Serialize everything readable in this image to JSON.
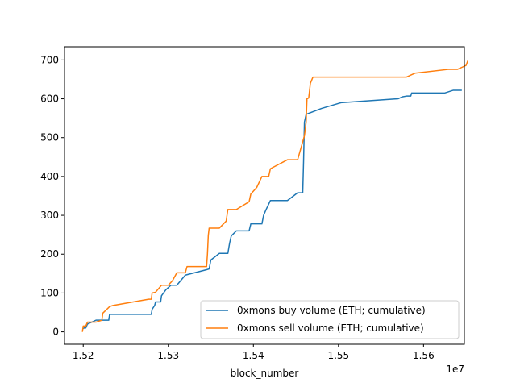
{
  "chart_data": {
    "type": "line",
    "title": "",
    "xlabel": "block_number",
    "ylabel": "",
    "x_offset_label": "1e7",
    "xlim": [
      1.5178,
      1.5648
    ],
    "ylim": [
      -32,
      734
    ],
    "xticks": [
      1.52,
      1.53,
      1.54,
      1.55,
      1.56
    ],
    "xtick_labels": [
      "1.52",
      "1.53",
      "1.54",
      "1.55",
      "1.56"
    ],
    "yticks": [
      0,
      100,
      200,
      300,
      400,
      500,
      600,
      700
    ],
    "ytick_labels": [
      "0",
      "100",
      "200",
      "300",
      "400",
      "500",
      "600",
      "700"
    ],
    "grid": false,
    "legend_position": "lower-right",
    "series": [
      {
        "name": "0xmons buy volume (ETH; cumulative)",
        "color": "#1f77b4",
        "points": [
          [
            1.52,
            8
          ],
          [
            1.5201,
            10
          ],
          [
            1.5203,
            10
          ],
          [
            1.5205,
            20
          ],
          [
            1.521,
            25
          ],
          [
            1.5215,
            30
          ],
          [
            1.523,
            30
          ],
          [
            1.5231,
            45
          ],
          [
            1.528,
            45
          ],
          [
            1.5281,
            58
          ],
          [
            1.5284,
            68
          ],
          [
            1.5285,
            77
          ],
          [
            1.5291,
            77
          ],
          [
            1.5292,
            93
          ],
          [
            1.5297,
            108
          ],
          [
            1.5303,
            120
          ],
          [
            1.531,
            120
          ],
          [
            1.532,
            146
          ],
          [
            1.5345,
            160
          ],
          [
            1.5348,
            162
          ],
          [
            1.535,
            185
          ],
          [
            1.536,
            202
          ],
          [
            1.537,
            202
          ],
          [
            1.5372,
            228
          ],
          [
            1.5374,
            247
          ],
          [
            1.538,
            260
          ],
          [
            1.5395,
            260
          ],
          [
            1.5397,
            278
          ],
          [
            1.541,
            278
          ],
          [
            1.5412,
            300
          ],
          [
            1.5415,
            315
          ],
          [
            1.542,
            338
          ],
          [
            1.544,
            338
          ],
          [
            1.5452,
            358
          ],
          [
            1.5458,
            358
          ],
          [
            1.5459,
            440
          ],
          [
            1.546,
            540
          ],
          [
            1.5462,
            560
          ],
          [
            1.548,
            575
          ],
          [
            1.55,
            588
          ],
          [
            1.5503,
            590
          ],
          [
            1.557,
            600
          ],
          [
            1.5575,
            605
          ],
          [
            1.558,
            607
          ],
          [
            1.5585,
            607
          ],
          [
            1.5586,
            615
          ],
          [
            1.5625,
            615
          ],
          [
            1.5635,
            622
          ],
          [
            1.564,
            622
          ],
          [
            1.5645,
            622
          ]
        ]
      },
      {
        "name": "0xmons sell volume (ETH; cumulative)",
        "color": "#ff7f0e",
        "points": [
          [
            1.5199,
            0
          ],
          [
            1.52,
            15
          ],
          [
            1.5203,
            15
          ],
          [
            1.5205,
            25
          ],
          [
            1.5215,
            25
          ],
          [
            1.5219,
            28
          ],
          [
            1.5222,
            30
          ],
          [
            1.5223,
            48
          ],
          [
            1.5231,
            65
          ],
          [
            1.5235,
            68
          ],
          [
            1.5277,
            84
          ],
          [
            1.528,
            84
          ],
          [
            1.5281,
            100
          ],
          [
            1.5285,
            102
          ],
          [
            1.5292,
            120
          ],
          [
            1.53,
            120
          ],
          [
            1.5305,
            132
          ],
          [
            1.531,
            152
          ],
          [
            1.532,
            152
          ],
          [
            1.5322,
            168
          ],
          [
            1.5345,
            168
          ],
          [
            1.5346,
            200
          ],
          [
            1.5347,
            248
          ],
          [
            1.5348,
            267
          ],
          [
            1.536,
            267
          ],
          [
            1.5368,
            285
          ],
          [
            1.537,
            315
          ],
          [
            1.538,
            315
          ],
          [
            1.5395,
            335
          ],
          [
            1.5397,
            355
          ],
          [
            1.5404,
            372
          ],
          [
            1.541,
            400
          ],
          [
            1.5418,
            400
          ],
          [
            1.542,
            420
          ],
          [
            1.544,
            443
          ],
          [
            1.5452,
            443
          ],
          [
            1.546,
            505
          ],
          [
            1.5462,
            540
          ],
          [
            1.5463,
            600
          ],
          [
            1.5465,
            602
          ],
          [
            1.5467,
            640
          ],
          [
            1.547,
            656
          ],
          [
            1.558,
            656
          ],
          [
            1.559,
            666
          ],
          [
            1.563,
            676
          ],
          [
            1.564,
            676
          ],
          [
            1.565,
            686
          ],
          [
            1.5652,
            698
          ]
        ]
      }
    ]
  }
}
